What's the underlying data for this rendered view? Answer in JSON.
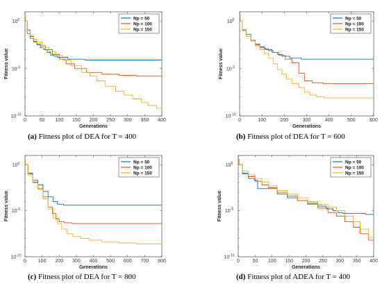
{
  "colors": {
    "s50": "#0072BD",
    "s100": "#D95319",
    "s150": "#EDB120"
  },
  "chart_data": [
    {
      "type": "line",
      "caption_label": "(a)",
      "caption_text": " Fitness plot of DEA for T = 400",
      "xlabel": "Generations",
      "ylabel": "Fitness value",
      "xlim": [
        0,
        400
      ],
      "xticks": [
        0,
        50,
        100,
        150,
        200,
        250,
        300,
        350,
        400
      ],
      "yscale": "log",
      "ylim_exp": [
        -10,
        1
      ],
      "yticks": [
        {
          "exp": 0,
          "label": "10",
          "sup": "0"
        },
        {
          "exp": -5,
          "label": "10",
          "sup": "-5"
        },
        {
          "exp": -10,
          "label": "10",
          "sup": "-10"
        }
      ],
      "legend": "top-right",
      "series": [
        {
          "name": "Np = 50",
          "x": [
            0,
            3,
            10,
            20,
            30,
            40,
            50,
            60,
            70,
            80,
            90,
            100,
            150,
            200,
            300,
            400
          ],
          "y_exp": [
            0.6,
            0,
            -0.9,
            -1.6,
            -2.1,
            -2.5,
            -2.8,
            -3.0,
            -3.3,
            -3.6,
            -3.7,
            -3.8,
            -4.0,
            -4.1,
            -4.1,
            -4.1
          ]
        },
        {
          "name": "Np = 100",
          "x": [
            0,
            3,
            10,
            20,
            30,
            40,
            50,
            70,
            90,
            110,
            130,
            160,
            200,
            250,
            300,
            350,
            400
          ],
          "y_exp": [
            0.6,
            0,
            -1.3,
            -1.8,
            -2.2,
            -2.4,
            -2.6,
            -3.0,
            -3.5,
            -4.0,
            -4.5,
            -5.0,
            -5.4,
            -5.6,
            -5.7,
            -5.8,
            -5.8
          ]
        },
        {
          "name": "Np = 150",
          "x": [
            0,
            3,
            10,
            20,
            30,
            40,
            60,
            80,
            100,
            120,
            150,
            180,
            200,
            220,
            250,
            280,
            300,
            330,
            350,
            370,
            400
          ],
          "y_exp": [
            0.6,
            0,
            -1.0,
            -1.5,
            -1.9,
            -2.2,
            -2.8,
            -3.2,
            -3.6,
            -4.1,
            -4.7,
            -5.4,
            -5.8,
            -6.3,
            -6.9,
            -7.4,
            -7.8,
            -8.2,
            -8.6,
            -8.9,
            -9.2
          ]
        }
      ]
    },
    {
      "type": "line",
      "caption_label": "(b)",
      "caption_text": " Fitness plot of DEA for T = 600",
      "xlabel": "Generations",
      "ylabel": "Fitness value",
      "xlim": [
        0,
        600
      ],
      "xticks": [
        0,
        100,
        200,
        300,
        400,
        500,
        600
      ],
      "yscale": "log",
      "ylim_exp": [
        -10,
        1
      ],
      "yticks": [
        {
          "exp": 0,
          "label": "10",
          "sup": "0"
        },
        {
          "exp": -5,
          "label": "10",
          "sup": "-5"
        },
        {
          "exp": -10,
          "label": "10",
          "sup": "-10"
        }
      ],
      "legend": "top-right",
      "series": [
        {
          "name": "Np = 50",
          "x": [
            0,
            5,
            20,
            40,
            60,
            80,
            100,
            120,
            140,
            160,
            180,
            200,
            250,
            300,
            400,
            600
          ],
          "y_exp": [
            0.7,
            0,
            -0.9,
            -1.4,
            -2.0,
            -2.4,
            -2.7,
            -2.9,
            -3.1,
            -3.3,
            -3.5,
            -3.7,
            -3.9,
            -4.0,
            -4.0,
            -4.0
          ]
        },
        {
          "name": "Np = 100",
          "x": [
            0,
            5,
            20,
            40,
            60,
            80,
            100,
            130,
            160,
            190,
            220,
            250,
            280,
            300,
            350,
            400,
            500,
            600
          ],
          "y_exp": [
            0.7,
            0,
            -1.0,
            -1.6,
            -2.0,
            -2.5,
            -2.8,
            -3.0,
            -3.3,
            -3.6,
            -4.0,
            -4.4,
            -5.5,
            -6.3,
            -6.5,
            -6.6,
            -6.6,
            -6.6
          ]
        },
        {
          "name": "Np = 150",
          "x": [
            0,
            5,
            20,
            40,
            60,
            80,
            100,
            120,
            140,
            160,
            180,
            200,
            220,
            250,
            280,
            300,
            330,
            360,
            400,
            500,
            600
          ],
          "y_exp": [
            0.7,
            0,
            -1.0,
            -1.6,
            -2.1,
            -2.6,
            -3.0,
            -3.4,
            -3.9,
            -4.5,
            -5.1,
            -5.6,
            -6.1,
            -6.6,
            -7.0,
            -7.5,
            -7.8,
            -8.0,
            -8.1,
            -8.1,
            -8.1
          ]
        }
      ]
    },
    {
      "type": "line",
      "caption_label": "(c)",
      "caption_text": " Fitness plot of DEA for T = 800",
      "xlabel": "Generations",
      "ylabel": "Fitness value",
      "xlim": [
        0,
        800
      ],
      "xticks": [
        0,
        100,
        200,
        300,
        400,
        500,
        600,
        700,
        800
      ],
      "yscale": "log",
      "ylim_exp": [
        -10,
        1
      ],
      "yticks": [
        {
          "exp": 0,
          "label": "10",
          "sup": "0"
        },
        {
          "exp": -5,
          "label": "10",
          "sup": "-5"
        },
        {
          "exp": -10,
          "label": "10",
          "sup": "-10"
        }
      ],
      "legend": "top-right",
      "series": [
        {
          "name": "Np = 50",
          "x": [
            0,
            5,
            30,
            60,
            90,
            120,
            150,
            180,
            200,
            250,
            300,
            400,
            600,
            800
          ],
          "y_exp": [
            0.5,
            0,
            -0.9,
            -1.7,
            -2.2,
            -2.9,
            -3.5,
            -4.0,
            -4.3,
            -4.4,
            -4.4,
            -4.4,
            -4.4,
            -4.4
          ]
        },
        {
          "name": "Np = 100",
          "x": [
            0,
            5,
            30,
            60,
            90,
            120,
            150,
            170,
            190,
            210,
            250,
            300,
            400,
            600,
            800
          ],
          "y_exp": [
            0.5,
            0,
            -1.0,
            -1.9,
            -2.6,
            -3.5,
            -4.6,
            -5.3,
            -5.9,
            -6.2,
            -6.3,
            -6.4,
            -6.4,
            -6.4,
            -6.4
          ]
        },
        {
          "name": "Np = 150",
          "x": [
            0,
            5,
            30,
            60,
            90,
            120,
            150,
            180,
            200,
            230,
            260,
            300,
            350,
            400,
            500,
            600,
            700,
            800
          ],
          "y_exp": [
            0.5,
            0,
            -1.1,
            -2.0,
            -2.7,
            -3.7,
            -4.8,
            -5.8,
            -6.4,
            -7.0,
            -7.5,
            -7.8,
            -8.0,
            -8.2,
            -8.4,
            -8.5,
            -8.6,
            -8.6
          ]
        }
      ]
    },
    {
      "type": "line",
      "caption_label": "(d)",
      "caption_text": " Fitness plot of ADEA for T = 400",
      "xlabel": "Generations",
      "ylabel": "Fitness value",
      "xlim": [
        0,
        400
      ],
      "xticks": [
        0,
        50,
        100,
        150,
        200,
        250,
        300,
        350,
        400
      ],
      "yscale": "log",
      "ylim_exp": [
        -10,
        1
      ],
      "yticks": [
        {
          "exp": 0,
          "label": "10",
          "sup": "0"
        },
        {
          "exp": -5,
          "label": "10",
          "sup": "-5"
        },
        {
          "exp": -10,
          "label": "10",
          "sup": "-10"
        }
      ],
      "legend": "top-right",
      "series": [
        {
          "name": "Np = 50",
          "x": [
            0,
            5,
            20,
            40,
            55,
            60,
            100,
            130,
            160,
            190,
            220,
            250,
            270,
            290,
            300,
            320,
            350,
            400
          ],
          "y_exp": [
            0.6,
            0,
            -1.0,
            -1.5,
            -1.7,
            -2.6,
            -2.6,
            -3.2,
            -3.6,
            -3.9,
            -4.2,
            -4.5,
            -4.8,
            -5.0,
            -5.2,
            -5.3,
            -5.3,
            -5.4
          ]
        },
        {
          "name": "Np = 100",
          "x": [
            0,
            5,
            20,
            40,
            60,
            80,
            100,
            130,
            160,
            190,
            220,
            250,
            280,
            300,
            330,
            350,
            370,
            400
          ],
          "y_exp": [
            0.6,
            0,
            -0.9,
            -1.3,
            -1.8,
            -2.2,
            -2.5,
            -3.0,
            -3.4,
            -3.9,
            -4.3,
            -4.7,
            -5.2,
            -5.6,
            -6.2,
            -6.8,
            -7.5,
            -8.2
          ]
        },
        {
          "name": "Np = 150",
          "x": [
            0,
            5,
            20,
            40,
            60,
            80,
            100,
            130,
            160,
            190,
            220,
            250,
            280,
            300,
            330,
            350,
            370,
            400
          ],
          "y_exp": [
            0.6,
            0,
            -0.7,
            -1.1,
            -1.5,
            -1.9,
            -2.3,
            -2.8,
            -3.2,
            -3.6,
            -4.0,
            -4.3,
            -4.6,
            -5.0,
            -5.6,
            -6.2,
            -7.0,
            -7.9
          ]
        }
      ]
    }
  ]
}
